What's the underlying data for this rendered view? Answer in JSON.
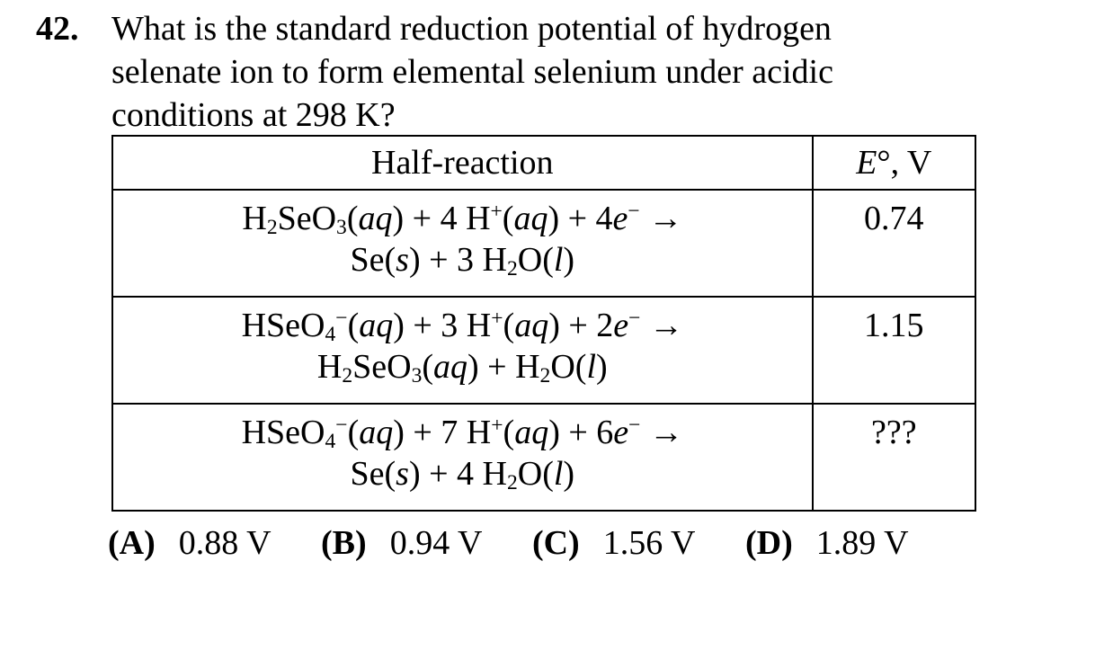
{
  "question": {
    "number": "42.",
    "lines": [
      "What is the standard reduction potential of hydrogen",
      "selenate ion to form elemental selenium under acidic",
      "conditions at 298 K?"
    ]
  },
  "table": {
    "headers": {
      "reaction": "Half-reaction",
      "potential_symbol": "E",
      "potential_suffix": "°, V"
    },
    "rows": [
      {
        "reactants": "H₂SeO₃(aq) + 4 H⁺(aq) + 4e⁻ →",
        "products": "Se(s) + 3 H₂O(l)",
        "potential": "0.74"
      },
      {
        "reactants": "HSeO₄⁻(aq) + 3 H⁺(aq) + 2e⁻ →",
        "products": "H₂SeO₃(aq) + H₂O(l)",
        "potential": "1.15"
      },
      {
        "reactants": "HSeO₄⁻(aq) + 7 H⁺(aq) + 6e⁻ →",
        "products": "Se(s) + 4 H₂O(l)",
        "potential": "???"
      }
    ]
  },
  "choices": [
    {
      "letter": "(A)",
      "text": "0.88 V"
    },
    {
      "letter": "(B)",
      "text": "0.94 V"
    },
    {
      "letter": "(C)",
      "text": "1.56 V"
    },
    {
      "letter": "(D)",
      "text": "1.89 V"
    }
  ]
}
